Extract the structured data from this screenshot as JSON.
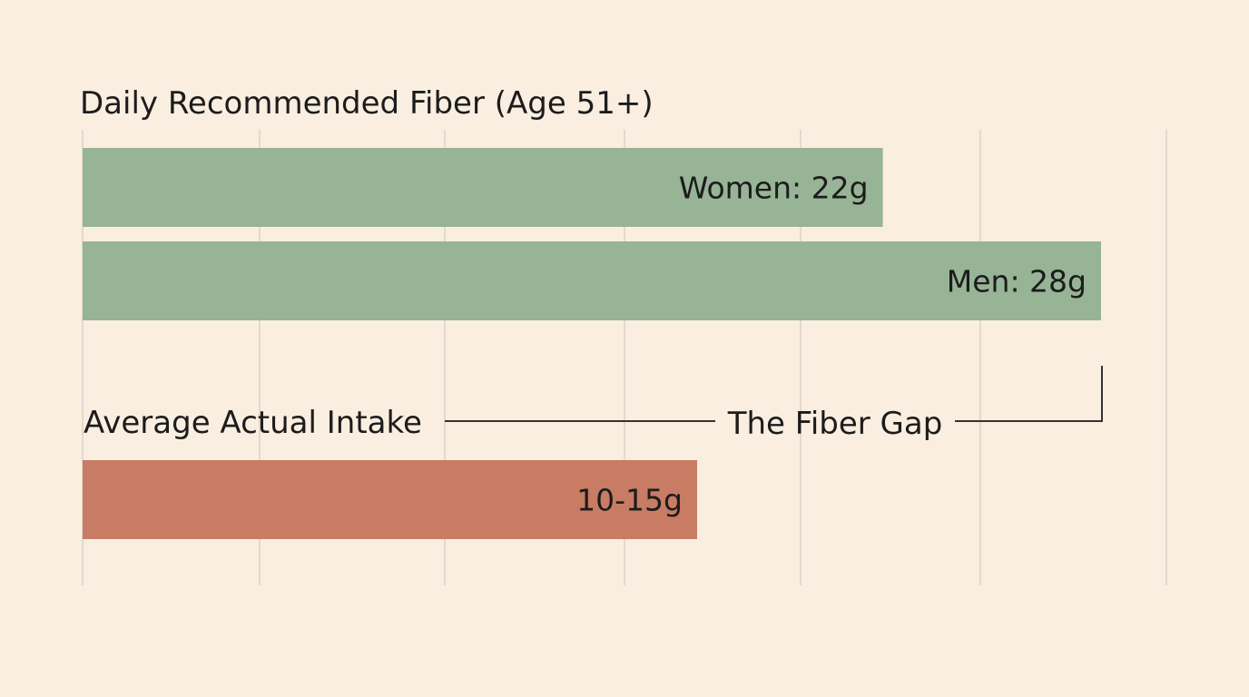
{
  "chart_data": {
    "type": "bar",
    "orientation": "horizontal",
    "title": "Daily Recommended Fiber (Age 51+)",
    "units": "g",
    "recommended": {
      "series": [
        {
          "name": "Women",
          "value": 22,
          "label": "Women: 22g"
        },
        {
          "name": "Men",
          "value": 28,
          "label": "Men: 28g"
        }
      ],
      "color": "#97b496"
    },
    "actual": {
      "heading": "Average Actual Intake",
      "range": [
        10,
        15
      ],
      "label": "10-15g",
      "color": "#c87c63"
    },
    "annotation": {
      "text": "The Fiber Gap",
      "from_value": 17,
      "to_value": 28
    },
    "xlim": [
      0,
      28
    ],
    "grid": true
  }
}
